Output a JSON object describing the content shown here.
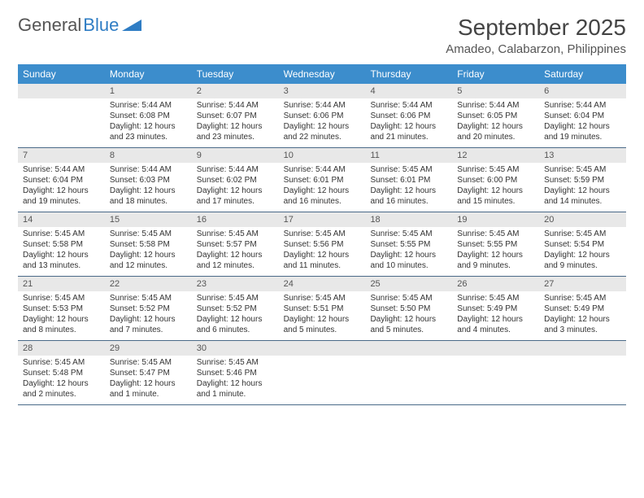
{
  "brand": {
    "part1": "General",
    "part2": "Blue"
  },
  "title": "September 2025",
  "location": "Amadeo, Calabarzon, Philippines",
  "weekdays": [
    "Sunday",
    "Monday",
    "Tuesday",
    "Wednesday",
    "Thursday",
    "Friday",
    "Saturday"
  ],
  "colors": {
    "header_bg": "#3c8dcc",
    "header_text": "#ffffff",
    "daynum_bg": "#e8e8e8",
    "row_border": "#4a6a88",
    "text": "#333333",
    "title_text": "#444444"
  },
  "weeks": [
    [
      {
        "n": "",
        "sunrise": "",
        "sunset": "",
        "daylight": ""
      },
      {
        "n": "1",
        "sunrise": "Sunrise: 5:44 AM",
        "sunset": "Sunset: 6:08 PM",
        "daylight": "Daylight: 12 hours and 23 minutes."
      },
      {
        "n": "2",
        "sunrise": "Sunrise: 5:44 AM",
        "sunset": "Sunset: 6:07 PM",
        "daylight": "Daylight: 12 hours and 23 minutes."
      },
      {
        "n": "3",
        "sunrise": "Sunrise: 5:44 AM",
        "sunset": "Sunset: 6:06 PM",
        "daylight": "Daylight: 12 hours and 22 minutes."
      },
      {
        "n": "4",
        "sunrise": "Sunrise: 5:44 AM",
        "sunset": "Sunset: 6:06 PM",
        "daylight": "Daylight: 12 hours and 21 minutes."
      },
      {
        "n": "5",
        "sunrise": "Sunrise: 5:44 AM",
        "sunset": "Sunset: 6:05 PM",
        "daylight": "Daylight: 12 hours and 20 minutes."
      },
      {
        "n": "6",
        "sunrise": "Sunrise: 5:44 AM",
        "sunset": "Sunset: 6:04 PM",
        "daylight": "Daylight: 12 hours and 19 minutes."
      }
    ],
    [
      {
        "n": "7",
        "sunrise": "Sunrise: 5:44 AM",
        "sunset": "Sunset: 6:04 PM",
        "daylight": "Daylight: 12 hours and 19 minutes."
      },
      {
        "n": "8",
        "sunrise": "Sunrise: 5:44 AM",
        "sunset": "Sunset: 6:03 PM",
        "daylight": "Daylight: 12 hours and 18 minutes."
      },
      {
        "n": "9",
        "sunrise": "Sunrise: 5:44 AM",
        "sunset": "Sunset: 6:02 PM",
        "daylight": "Daylight: 12 hours and 17 minutes."
      },
      {
        "n": "10",
        "sunrise": "Sunrise: 5:44 AM",
        "sunset": "Sunset: 6:01 PM",
        "daylight": "Daylight: 12 hours and 16 minutes."
      },
      {
        "n": "11",
        "sunrise": "Sunrise: 5:45 AM",
        "sunset": "Sunset: 6:01 PM",
        "daylight": "Daylight: 12 hours and 16 minutes."
      },
      {
        "n": "12",
        "sunrise": "Sunrise: 5:45 AM",
        "sunset": "Sunset: 6:00 PM",
        "daylight": "Daylight: 12 hours and 15 minutes."
      },
      {
        "n": "13",
        "sunrise": "Sunrise: 5:45 AM",
        "sunset": "Sunset: 5:59 PM",
        "daylight": "Daylight: 12 hours and 14 minutes."
      }
    ],
    [
      {
        "n": "14",
        "sunrise": "Sunrise: 5:45 AM",
        "sunset": "Sunset: 5:58 PM",
        "daylight": "Daylight: 12 hours and 13 minutes."
      },
      {
        "n": "15",
        "sunrise": "Sunrise: 5:45 AM",
        "sunset": "Sunset: 5:58 PM",
        "daylight": "Daylight: 12 hours and 12 minutes."
      },
      {
        "n": "16",
        "sunrise": "Sunrise: 5:45 AM",
        "sunset": "Sunset: 5:57 PM",
        "daylight": "Daylight: 12 hours and 12 minutes."
      },
      {
        "n": "17",
        "sunrise": "Sunrise: 5:45 AM",
        "sunset": "Sunset: 5:56 PM",
        "daylight": "Daylight: 12 hours and 11 minutes."
      },
      {
        "n": "18",
        "sunrise": "Sunrise: 5:45 AM",
        "sunset": "Sunset: 5:55 PM",
        "daylight": "Daylight: 12 hours and 10 minutes."
      },
      {
        "n": "19",
        "sunrise": "Sunrise: 5:45 AM",
        "sunset": "Sunset: 5:55 PM",
        "daylight": "Daylight: 12 hours and 9 minutes."
      },
      {
        "n": "20",
        "sunrise": "Sunrise: 5:45 AM",
        "sunset": "Sunset: 5:54 PM",
        "daylight": "Daylight: 12 hours and 9 minutes."
      }
    ],
    [
      {
        "n": "21",
        "sunrise": "Sunrise: 5:45 AM",
        "sunset": "Sunset: 5:53 PM",
        "daylight": "Daylight: 12 hours and 8 minutes."
      },
      {
        "n": "22",
        "sunrise": "Sunrise: 5:45 AM",
        "sunset": "Sunset: 5:52 PM",
        "daylight": "Daylight: 12 hours and 7 minutes."
      },
      {
        "n": "23",
        "sunrise": "Sunrise: 5:45 AM",
        "sunset": "Sunset: 5:52 PM",
        "daylight": "Daylight: 12 hours and 6 minutes."
      },
      {
        "n": "24",
        "sunrise": "Sunrise: 5:45 AM",
        "sunset": "Sunset: 5:51 PM",
        "daylight": "Daylight: 12 hours and 5 minutes."
      },
      {
        "n": "25",
        "sunrise": "Sunrise: 5:45 AM",
        "sunset": "Sunset: 5:50 PM",
        "daylight": "Daylight: 12 hours and 5 minutes."
      },
      {
        "n": "26",
        "sunrise": "Sunrise: 5:45 AM",
        "sunset": "Sunset: 5:49 PM",
        "daylight": "Daylight: 12 hours and 4 minutes."
      },
      {
        "n": "27",
        "sunrise": "Sunrise: 5:45 AM",
        "sunset": "Sunset: 5:49 PM",
        "daylight": "Daylight: 12 hours and 3 minutes."
      }
    ],
    [
      {
        "n": "28",
        "sunrise": "Sunrise: 5:45 AM",
        "sunset": "Sunset: 5:48 PM",
        "daylight": "Daylight: 12 hours and 2 minutes."
      },
      {
        "n": "29",
        "sunrise": "Sunrise: 5:45 AM",
        "sunset": "Sunset: 5:47 PM",
        "daylight": "Daylight: 12 hours and 1 minute."
      },
      {
        "n": "30",
        "sunrise": "Sunrise: 5:45 AM",
        "sunset": "Sunset: 5:46 PM",
        "daylight": "Daylight: 12 hours and 1 minute."
      },
      {
        "n": "",
        "sunrise": "",
        "sunset": "",
        "daylight": ""
      },
      {
        "n": "",
        "sunrise": "",
        "sunset": "",
        "daylight": ""
      },
      {
        "n": "",
        "sunrise": "",
        "sunset": "",
        "daylight": ""
      },
      {
        "n": "",
        "sunrise": "",
        "sunset": "",
        "daylight": ""
      }
    ]
  ]
}
